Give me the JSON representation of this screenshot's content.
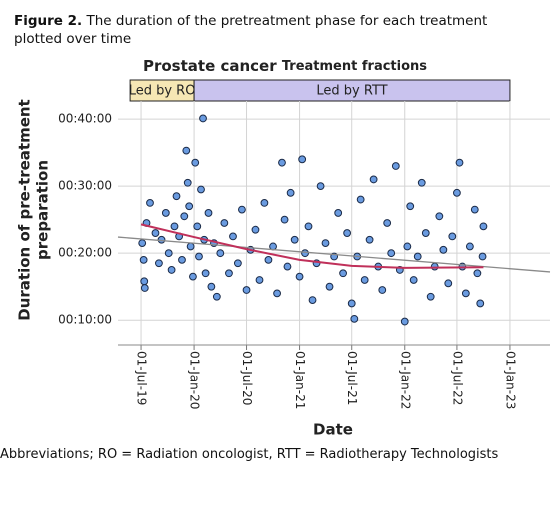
{
  "caption": {
    "label": "Figure 2.",
    "text": "The duration of the pretreatment phase for each treatment plotted over time"
  },
  "footnote": "Abbreviations; RO = Radiation oncologist, RTT = Radiotherapy Technologists",
  "chart_data": {
    "type": "scatter",
    "title": "Prostate cancer",
    "subtitle": "Treatment fractions",
    "x_label": "Date",
    "y_label": [
      "Duration of pre-treatment",
      "preparation"
    ],
    "xlim": [
      "2019-04-12",
      "2023-05-20"
    ],
    "xticks": [
      {
        "value": "2019-07-01",
        "label": "01-Jul-19"
      },
      {
        "value": "2020-01-01",
        "label": "01-Jan-20"
      },
      {
        "value": "2020-07-01",
        "label": "01-Jul-20"
      },
      {
        "value": "2021-01-01",
        "label": "01-Jan-21"
      },
      {
        "value": "2021-07-01",
        "label": "01-Jul-21"
      },
      {
        "value": "2022-01-01",
        "label": "01-Jan-22"
      },
      {
        "value": "2022-07-01",
        "label": "01-Jul-22"
      },
      {
        "value": "2023-01-01",
        "label": "01-Jan-23"
      }
    ],
    "ylim": [
      6.3,
      42.7
    ],
    "yticks": [
      {
        "value": 10,
        "label": "00:10:00"
      },
      {
        "value": 20,
        "label": "00:20:00"
      },
      {
        "value": 30,
        "label": "00:30:00"
      },
      {
        "value": 40,
        "label": "00:40:00"
      }
    ],
    "grid": true,
    "phases": [
      {
        "label": "Led by RO",
        "start": "2019-05-24",
        "end": "2020-01-01",
        "color": "#f6e7b4"
      },
      {
        "label": "Led by RTT",
        "start": "2020-01-01",
        "end": "2023-01-01",
        "color": "#c9c3ee"
      }
    ],
    "color": "#6a9be0",
    "x": [
      "2019-07-05",
      "2019-07-10",
      "2019-07-12",
      "2019-07-14",
      "2019-07-20",
      "2019-08-01",
      "2019-08-20",
      "2019-09-01",
      "2019-09-10",
      "2019-09-25",
      "2019-10-05",
      "2019-10-15",
      "2019-10-25",
      "2019-11-01",
      "2019-11-10",
      "2019-11-20",
      "2019-11-28",
      "2019-12-05",
      "2019-12-10",
      "2019-12-15",
      "2019-12-20",
      "2019-12-28",
      "2020-01-05",
      "2020-01-12",
      "2020-01-18",
      "2020-01-25",
      "2020-02-01",
      "2020-02-05",
      "2020-02-10",
      "2020-02-20",
      "2020-03-01",
      "2020-03-10",
      "2020-03-20",
      "2020-04-01",
      "2020-04-15",
      "2020-05-01",
      "2020-05-15",
      "2020-06-01",
      "2020-06-15",
      "2020-07-01",
      "2020-07-15",
      "2020-08-01",
      "2020-08-15",
      "2020-09-01",
      "2020-09-15",
      "2020-10-01",
      "2020-10-15",
      "2020-11-01",
      "2020-11-10",
      "2020-11-20",
      "2020-12-01",
      "2020-12-15",
      "2021-01-01",
      "2021-01-10",
      "2021-01-20",
      "2021-02-01",
      "2021-02-15",
      "2021-03-01",
      "2021-03-15",
      "2021-04-01",
      "2021-04-15",
      "2021-05-01",
      "2021-05-15",
      "2021-06-01",
      "2021-06-15",
      "2021-07-01",
      "2021-07-10",
      "2021-07-20",
      "2021-08-01",
      "2021-08-15",
      "2021-09-01",
      "2021-09-15",
      "2021-10-01",
      "2021-10-15",
      "2021-11-01",
      "2021-11-15",
      "2021-12-01",
      "2021-12-15",
      "2022-01-01",
      "2022-01-10",
      "2022-01-20",
      "2022-02-01",
      "2022-02-15",
      "2022-03-01",
      "2022-03-15",
      "2022-04-01",
      "2022-04-15",
      "2022-05-01",
      "2022-05-15",
      "2022-06-01",
      "2022-06-15",
      "2022-07-01",
      "2022-07-10",
      "2022-07-20",
      "2022-08-01",
      "2022-08-15",
      "2022-09-01",
      "2022-09-10",
      "2022-09-20",
      "2022-09-28",
      "2022-10-01"
    ],
    "values": [
      21.5,
      19,
      15.8,
      14.8,
      24.5,
      27.5,
      23,
      18.5,
      22,
      26,
      20,
      17.5,
      24,
      28.5,
      22.5,
      19,
      25.5,
      35.3,
      30.5,
      27,
      21,
      16.5,
      33.5,
      24,
      19.5,
      29.5,
      40.1,
      22,
      17,
      26,
      15,
      21.5,
      13.5,
      20,
      24.5,
      17,
      22.5,
      18.5,
      26.5,
      14.5,
      20.5,
      23.5,
      16,
      27.5,
      19,
      21,
      14,
      33.5,
      25,
      18,
      29,
      22,
      16.5,
      34,
      20,
      24,
      13,
      18.5,
      30,
      21.5,
      15,
      19.5,
      26,
      17,
      23,
      12.5,
      10.2,
      19.5,
      28,
      16,
      22,
      31,
      18,
      14.5,
      24.5,
      20,
      33,
      17.5,
      9.8,
      21,
      27,
      16,
      19.5,
      30.5,
      23,
      13.5,
      18,
      25.5,
      20.5,
      15.5,
      22.5,
      29,
      33.5,
      18,
      14,
      21,
      26.5,
      17,
      12.5,
      19.5,
      24
    ],
    "trend_lines": [
      {
        "color": "#8a8a8a",
        "x": [
          "2019-04-12",
          "2023-05-20"
        ],
        "values": [
          22.4,
          17.2
        ]
      },
      {
        "color": "#c0305a",
        "x": [
          "2019-07-01",
          "2020-01-01",
          "2020-07-01",
          "2021-01-01",
          "2021-07-01",
          "2022-01-01",
          "2022-10-01"
        ],
        "values": [
          24.3,
          22.4,
          20.6,
          19,
          18.1,
          17.8,
          17.9
        ]
      }
    ]
  }
}
